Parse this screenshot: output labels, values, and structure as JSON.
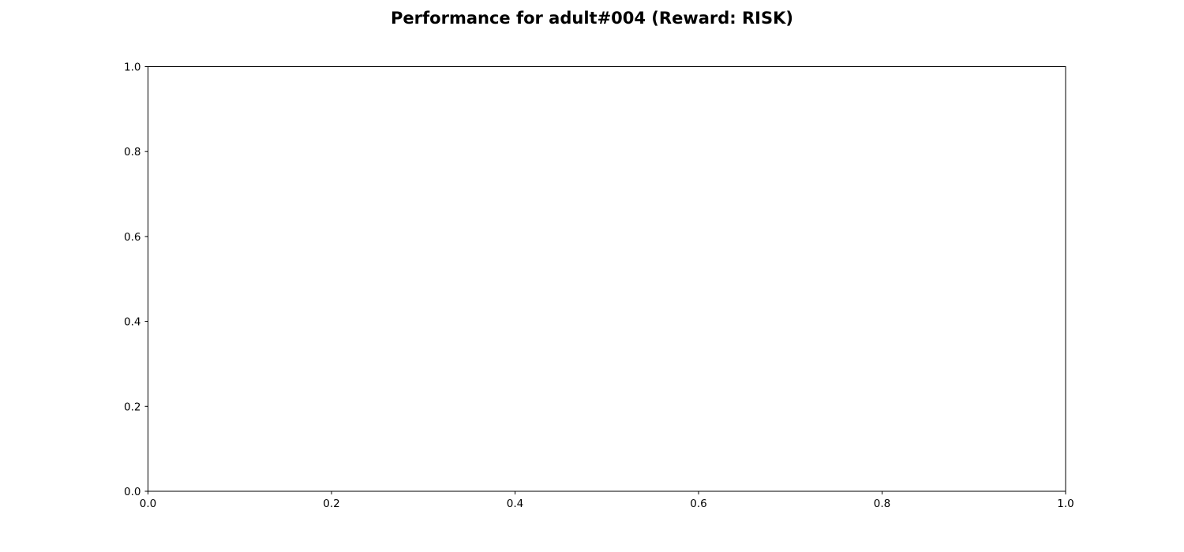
{
  "figure": {
    "title": "Performance for adult#004 (Reward: RISK)"
  },
  "chart_data": {
    "type": "line",
    "title": "Performance for adult#004 (Reward: RISK)",
    "xlabel": "",
    "ylabel": "",
    "series": [],
    "xlim": [
      0,
      1
    ],
    "ylim": [
      0,
      1
    ],
    "xticks": [
      0.0,
      0.2,
      0.4,
      0.6,
      0.8,
      1.0
    ],
    "yticks": [
      0.0,
      0.2,
      0.4,
      0.6,
      0.8,
      1.0
    ],
    "xtick_labels": [
      "0.0",
      "0.2",
      "0.4",
      "0.6",
      "0.8",
      "1.0"
    ],
    "ytick_labels": [
      "0.0",
      "0.2",
      "0.4",
      "0.6",
      "0.8",
      "1.0"
    ],
    "grid": false,
    "legend": "none"
  },
  "colors": {
    "background": "#ffffff",
    "axes": "#000000",
    "text": "#000000"
  }
}
